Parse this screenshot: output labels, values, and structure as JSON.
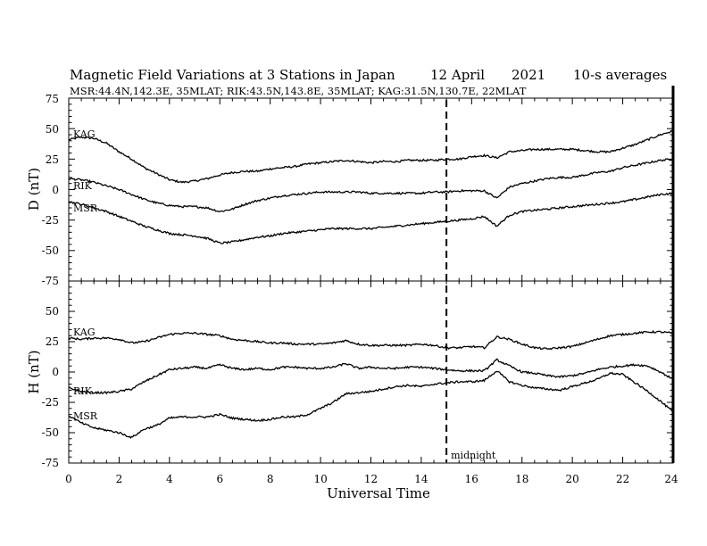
{
  "chart_data": {
    "type": "line",
    "title": {
      "main": "Magnetic Field Variations at 3 Stations in Japan",
      "date": "12  April",
      "year": "2021",
      "averaging": "10-s averages"
    },
    "subtitle": "MSR:44.4N,142.3E, 35MLAT;  RIK:43.5N,143.8E, 35MLAT;  KAG:31.5N,130.7E, 22MLAT",
    "xlabel": "Universal Time",
    "xlim": [
      0,
      24
    ],
    "x_ticks": [
      "0",
      "2",
      "4",
      "6",
      "8",
      "10",
      "12",
      "14",
      "16",
      "18",
      "20",
      "22",
      "24"
    ],
    "annotation": {
      "label": "midnight",
      "x": 15
    },
    "panels": [
      {
        "ylabel": "D (nT)",
        "ylim": [
          -75,
          75
        ],
        "y_ticks": [
          "75",
          "50",
          "25",
          "0",
          "-25",
          "-50",
          "-75"
        ],
        "series": [
          {
            "name": "KAG",
            "x": [
              0,
              0.5,
              1,
              1.5,
              2,
              2.5,
              3,
              3.5,
              4,
              4.5,
              5,
              5.5,
              6,
              6.5,
              7,
              7.5,
              8,
              8.5,
              9,
              9.5,
              10,
              10.5,
              11,
              11.5,
              12,
              12.5,
              13,
              13.5,
              14,
              14.5,
              15,
              15.5,
              16,
              16.5,
              17,
              17.5,
              18,
              18.5,
              19,
              19.5,
              20,
              20.5,
              21,
              21.5,
              22,
              22.5,
              23,
              23.5,
              24
            ],
            "values": [
              41,
              43,
              42,
              38,
              31,
              25,
              18,
              13,
              8,
              6,
              7,
              9,
              12,
              14,
              15,
              15,
              17,
              18,
              19,
              21,
              22,
              23,
              24,
              23,
              22,
              23,
              23,
              24,
              24,
              24,
              25,
              25,
              27,
              28,
              26,
              31,
              32,
              33,
              33,
              33,
              33,
              32,
              31,
              31,
              34,
              37,
              41,
              45,
              48
            ]
          },
          {
            "name": "RIK",
            "x": [
              0,
              0.5,
              1,
              1.5,
              2,
              2.5,
              3,
              3.5,
              4,
              4.5,
              5,
              5.5,
              6,
              6.5,
              7,
              7.5,
              8,
              8.5,
              9,
              9.5,
              10,
              10.5,
              11,
              11.5,
              12,
              12.5,
              13,
              13.5,
              14,
              14.5,
              15,
              15.5,
              16,
              16.5,
              17,
              17.5,
              18,
              18.5,
              19,
              19.5,
              20,
              20.5,
              21,
              21.5,
              22,
              22.5,
              23,
              23.5,
              24
            ],
            "values": [
              9,
              8,
              6,
              3,
              0,
              -4,
              -8,
              -11,
              -13,
              -14,
              -14,
              -15,
              -18,
              -16,
              -12,
              -9,
              -7,
              -5,
              -4,
              -3,
              -2,
              -2,
              -2,
              -2,
              -3,
              -3,
              -3,
              -3,
              -3,
              -2,
              -2,
              -1,
              -1,
              -1,
              -7,
              2,
              5,
              7,
              9,
              10,
              10,
              12,
              14,
              15,
              18,
              20,
              22,
              24,
              25
            ]
          },
          {
            "name": "MSR",
            "x": [
              0,
              0.5,
              1,
              1.5,
              2,
              2.5,
              3,
              3.5,
              4,
              4.5,
              5,
              5.5,
              6,
              6.5,
              7,
              7.5,
              8,
              8.5,
              9,
              9.5,
              10,
              10.5,
              11,
              11.5,
              12,
              12.5,
              13,
              13.5,
              14,
              14.5,
              15,
              15.5,
              16,
              16.5,
              17,
              17.5,
              18,
              18.5,
              19,
              19.5,
              20,
              20.5,
              21,
              21.5,
              22,
              22.5,
              23,
              23.5,
              24
            ],
            "values": [
              -10,
              -12,
              -15,
              -18,
              -22,
              -26,
              -30,
              -33,
              -36,
              -37,
              -38,
              -40,
              -44,
              -43,
              -41,
              -39,
              -38,
              -36,
              -35,
              -34,
              -33,
              -32,
              -32,
              -32,
              -32,
              -31,
              -30,
              -29,
              -28,
              -27,
              -26,
              -25,
              -24,
              -22,
              -30,
              -21,
              -18,
              -17,
              -16,
              -15,
              -14,
              -13,
              -12,
              -11,
              -10,
              -8,
              -6,
              -4,
              -3
            ]
          }
        ]
      },
      {
        "ylabel": "H (nT)",
        "ylim": [
          -75,
          75
        ],
        "y_ticks": [
          "75",
          "50",
          "25",
          "0",
          "-25",
          "-50",
          "-75"
        ],
        "series": [
          {
            "name": "KAG",
            "x": [
              0,
              0.5,
              1,
              1.5,
              2,
              2.5,
              3,
              3.5,
              4,
              4.5,
              5,
              5.5,
              6,
              6.5,
              7,
              7.5,
              8,
              8.5,
              9,
              9.5,
              10,
              10.5,
              11,
              11.5,
              12,
              12.5,
              13,
              13.5,
              14,
              14.5,
              15,
              15.5,
              16,
              16.5,
              17,
              17.5,
              18,
              18.5,
              19,
              19.5,
              20,
              20.5,
              21,
              21.5,
              22,
              22.5,
              23,
              23.5,
              24
            ],
            "values": [
              28,
              27,
              28,
              28,
              27,
              24,
              25,
              28,
              31,
              32,
              32,
              31,
              30,
              27,
              26,
              25,
              24,
              24,
              23,
              23,
              23,
              24,
              26,
              23,
              22,
              22,
              22,
              22,
              23,
              22,
              20,
              20,
              21,
              20,
              29,
              27,
              23,
              20,
              19,
              20,
              21,
              24,
              27,
              30,
              31,
              32,
              33,
              33,
              32
            ]
          },
          {
            "name": "RIK",
            "x": [
              0,
              0.5,
              1,
              1.5,
              2,
              2.5,
              3,
              3.5,
              4,
              4.5,
              5,
              5.5,
              6,
              6.5,
              7,
              7.5,
              8,
              8.5,
              9,
              9.5,
              10,
              10.5,
              11,
              11.5,
              12,
              12.5,
              13,
              13.5,
              14,
              14.5,
              15,
              15.5,
              16,
              16.5,
              17,
              17.5,
              18,
              18.5,
              19,
              19.5,
              20,
              20.5,
              21,
              21.5,
              22,
              22.5,
              23,
              23.5,
              24
            ],
            "values": [
              -13,
              -16,
              -17,
              -17,
              -16,
              -14,
              -8,
              -3,
              2,
              3,
              4,
              3,
              6,
              3,
              2,
              3,
              2,
              4,
              4,
              3,
              3,
              4,
              7,
              3,
              4,
              3,
              3,
              4,
              4,
              3,
              2,
              1,
              1,
              1,
              10,
              5,
              0,
              -1,
              -3,
              -4,
              -3,
              -1,
              2,
              4,
              5,
              6,
              5,
              0,
              -6
            ]
          },
          {
            "name": "MSR",
            "x": [
              0,
              0.5,
              1,
              1.5,
              2,
              2.5,
              3,
              3.5,
              4,
              4.5,
              5,
              5.5,
              6,
              6.5,
              7,
              7.5,
              8,
              8.5,
              9,
              9.5,
              10,
              10.5,
              11,
              11.5,
              12,
              12.5,
              13,
              13.5,
              14,
              14.5,
              15,
              15.5,
              16,
              16.5,
              17,
              17.5,
              18,
              18.5,
              19,
              19.5,
              20,
              20.5,
              21,
              21.5,
              22,
              22.5,
              23,
              23.5,
              24
            ],
            "values": [
              -36,
              -42,
              -46,
              -48,
              -50,
              -54,
              -47,
              -44,
              -38,
              -37,
              -37,
              -37,
              -35,
              -38,
              -39,
              -40,
              -39,
              -37,
              -37,
              -35,
              -30,
              -25,
              -18,
              -17,
              -16,
              -14,
              -12,
              -11,
              -12,
              -10,
              -9,
              -8,
              -8,
              -7,
              1,
              -8,
              -11,
              -13,
              -14,
              -15,
              -12,
              -9,
              -6,
              -1,
              -2,
              -9,
              -16,
              -24,
              -33
            ]
          }
        ]
      }
    ]
  }
}
